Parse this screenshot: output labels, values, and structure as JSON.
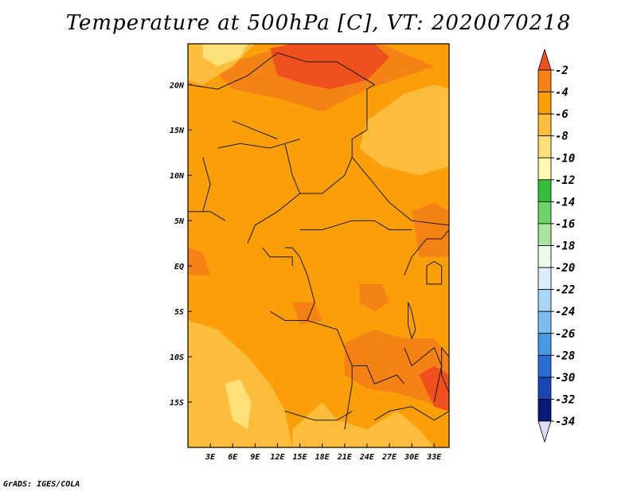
{
  "title": "Temperature at 500hPa [C], VT: 2020070218",
  "credit": "GrADS: IGES/COLA",
  "chart_data": {
    "type": "heatmap",
    "title": "Temperature at 500hPa [C], VT: 2020070218",
    "xlabel": "",
    "ylabel": "",
    "xlim": [
      0,
      35
    ],
    "ylim": [
      -20,
      24.5
    ],
    "x_ticks": [
      {
        "v": 3,
        "label": "3E"
      },
      {
        "v": 6,
        "label": "6E"
      },
      {
        "v": 9,
        "label": "9E"
      },
      {
        "v": 12,
        "label": "12E"
      },
      {
        "v": 15,
        "label": "15E"
      },
      {
        "v": 18,
        "label": "18E"
      },
      {
        "v": 21,
        "label": "21E"
      },
      {
        "v": 24,
        "label": "24E"
      },
      {
        "v": 27,
        "label": "27E"
      },
      {
        "v": 30,
        "label": "30E"
      },
      {
        "v": 33,
        "label": "33E"
      }
    ],
    "y_ticks": [
      {
        "v": 20,
        "label": "20N"
      },
      {
        "v": 15,
        "label": "15N"
      },
      {
        "v": 10,
        "label": "10N"
      },
      {
        "v": 5,
        "label": "5N"
      },
      {
        "v": 0,
        "label": "EQ"
      },
      {
        "v": -5,
        "label": "5S"
      },
      {
        "v": -10,
        "label": "10S"
      },
      {
        "v": -15,
        "label": "15S"
      }
    ],
    "colorbar": [
      {
        "label": "-2",
        "color": "#f0501e"
      },
      {
        "label": "-4",
        "color": "#f58214"
      },
      {
        "label": "-6",
        "color": "#fa9e0a"
      },
      {
        "label": "-8",
        "color": "#fcbd3c"
      },
      {
        "label": "-10",
        "color": "#fde178"
      },
      {
        "label": "-12",
        "color": "#fff8b4"
      },
      {
        "label": "-14",
        "color": "#34c03c"
      },
      {
        "label": "-16",
        "color": "#6ed46a"
      },
      {
        "label": "-18",
        "color": "#a8e6a0"
      },
      {
        "label": "-20",
        "color": "#ecfcec"
      },
      {
        "label": "-22",
        "color": "#dbeefa"
      },
      {
        "label": "-24",
        "color": "#aad6f6"
      },
      {
        "label": "-26",
        "color": "#7cbdf0"
      },
      {
        "label": "-28",
        "color": "#4a98e4"
      },
      {
        "label": "-30",
        "color": "#2a6cd8"
      },
      {
        "label": "-32",
        "color": "#1a46b4"
      },
      {
        "label": "-34",
        "color": "#0a1a78"
      }
    ],
    "colorbar_top_color": "#f0501e",
    "colorbar_bottom_color": "#dcdcf8",
    "regions": [
      {
        "level": -6,
        "color": "#fa9e0a",
        "points": [
          [
            0,
            24.5
          ],
          [
            35,
            24.5
          ],
          [
            35,
            -20
          ],
          [
            0,
            -20
          ]
        ]
      },
      {
        "level": -4,
        "color": "#f58214",
        "points": [
          [
            3,
            22
          ],
          [
            8,
            23
          ],
          [
            14,
            24.5
          ],
          [
            26,
            24.5
          ],
          [
            33,
            22
          ],
          [
            24,
            19.5
          ],
          [
            18,
            17
          ],
          [
            12,
            18.5
          ],
          [
            6,
            19.5
          ]
        ]
      },
      {
        "level": -2,
        "color": "#f0501e",
        "points": [
          [
            11,
            24
          ],
          [
            14,
            24.5
          ],
          [
            25,
            24.5
          ],
          [
            27,
            23
          ],
          [
            24,
            20.5
          ],
          [
            19,
            19.5
          ],
          [
            16,
            20
          ],
          [
            12,
            21
          ]
        ]
      },
      {
        "level": -8,
        "color": "#fcbd3c",
        "points": [
          [
            0,
            24.5
          ],
          [
            9,
            24.5
          ],
          [
            6,
            22
          ],
          [
            2,
            20
          ],
          [
            0,
            20.5
          ]
        ]
      },
      {
        "level": -10,
        "color": "#fde178",
        "points": [
          [
            2,
            24.5
          ],
          [
            8,
            24.5
          ],
          [
            7,
            23
          ],
          [
            4,
            22
          ],
          [
            2,
            23
          ]
        ]
      },
      {
        "level": -8,
        "color": "#fcbd3c",
        "points": [
          [
            24,
            16
          ],
          [
            29,
            19
          ],
          [
            33,
            20
          ],
          [
            35,
            19.5
          ],
          [
            35,
            11
          ],
          [
            31,
            10
          ],
          [
            26,
            11
          ],
          [
            23,
            13
          ]
        ]
      },
      {
        "level": -8,
        "color": "#fcbd3c",
        "points": [
          [
            0,
            -6
          ],
          [
            4,
            -7
          ],
          [
            8,
            -10
          ],
          [
            11,
            -13
          ],
          [
            13,
            -16
          ],
          [
            14,
            -20
          ],
          [
            0,
            -20
          ]
        ]
      },
      {
        "level": -10,
        "color": "#fde178",
        "points": [
          [
            5,
            -13
          ],
          [
            7,
            -12.5
          ],
          [
            8.5,
            -15
          ],
          [
            8,
            -18
          ],
          [
            6,
            -17
          ]
        ]
      },
      {
        "level": -8,
        "color": "#fcbd3c",
        "points": [
          [
            14,
            -18
          ],
          [
            18,
            -15
          ],
          [
            20,
            -17
          ],
          [
            24,
            -18
          ],
          [
            28,
            -16
          ],
          [
            31,
            -18
          ],
          [
            33,
            -20
          ],
          [
            14,
            -20
          ]
        ]
      },
      {
        "level": -4,
        "color": "#f58214",
        "points": [
          [
            21,
            -8.5
          ],
          [
            25,
            -7
          ],
          [
            29,
            -8
          ],
          [
            33,
            -8
          ],
          [
            35,
            -10
          ],
          [
            35,
            -16
          ],
          [
            32,
            -15
          ],
          [
            28,
            -14
          ],
          [
            24,
            -13.5
          ],
          [
            21,
            -12
          ]
        ]
      },
      {
        "level": -2,
        "color": "#f0501e",
        "points": [
          [
            31,
            -12
          ],
          [
            33,
            -11
          ],
          [
            35,
            -12
          ],
          [
            35,
            -16
          ],
          [
            33,
            -15.5
          ]
        ]
      },
      {
        "level": -4,
        "color": "#f58214",
        "points": [
          [
            23,
            -2
          ],
          [
            26,
            -2
          ],
          [
            27,
            -4
          ],
          [
            25,
            -5
          ],
          [
            23,
            -4
          ]
        ]
      },
      {
        "level": -4,
        "color": "#f58214",
        "points": [
          [
            14,
            -4
          ],
          [
            17,
            -4
          ],
          [
            18,
            -6
          ],
          [
            15,
            -6.5
          ]
        ]
      },
      {
        "level": -4,
        "color": "#f58214",
        "points": [
          [
            30,
            6
          ],
          [
            33,
            7
          ],
          [
            35,
            6
          ],
          [
            35,
            1
          ],
          [
            31,
            1
          ]
        ]
      },
      {
        "level": -4,
        "color": "#f58214",
        "points": [
          [
            0,
            2
          ],
          [
            2,
            1.5
          ],
          [
            3,
            -1
          ],
          [
            0,
            -1
          ]
        ]
      }
    ],
    "boundaries": [
      [
        [
          0,
          20
        ],
        [
          4,
          19.5
        ],
        [
          8,
          21
        ],
        [
          12,
          23.5
        ]
      ],
      [
        [
          12,
          23.5
        ],
        [
          16,
          22.5
        ],
        [
          20,
          22.5
        ],
        [
          25,
          20
        ],
        [
          24,
          19.5
        ]
      ],
      [
        [
          24,
          19.5
        ],
        [
          24,
          15
        ],
        [
          22,
          14
        ],
        [
          22,
          12
        ]
      ],
      [
        [
          22,
          12
        ],
        [
          25,
          9
        ],
        [
          27,
          7
        ],
        [
          30,
          5
        ],
        [
          35,
          4.5
        ]
      ],
      [
        [
          4,
          13
        ],
        [
          7,
          13.5
        ],
        [
          11,
          13
        ],
        [
          13,
          13.5
        ],
        [
          15,
          14
        ]
      ],
      [
        [
          13,
          13.5
        ],
        [
          14,
          10
        ],
        [
          15,
          8
        ],
        [
          18,
          8
        ],
        [
          21,
          10
        ],
        [
          22,
          12
        ]
      ],
      [
        [
          15,
          8
        ],
        [
          12,
          6
        ],
        [
          9,
          4.5
        ],
        [
          8,
          2.5
        ]
      ],
      [
        [
          0,
          6
        ],
        [
          3,
          6
        ],
        [
          5,
          5
        ]
      ],
      [
        [
          15,
          4
        ],
        [
          18,
          4
        ],
        [
          22,
          5
        ],
        [
          25,
          5
        ],
        [
          27,
          4
        ],
        [
          30,
          4
        ]
      ],
      [
        [
          13,
          2
        ],
        [
          14,
          2
        ],
        [
          15,
          1
        ],
        [
          16,
          -1
        ],
        [
          17,
          -4
        ],
        [
          16,
          -6
        ],
        [
          13,
          -6
        ]
      ],
      [
        [
          11,
          -5
        ],
        [
          13,
          -6
        ],
        [
          16,
          -6
        ],
        [
          20,
          -7
        ],
        [
          22,
          -11
        ],
        [
          24,
          -11
        ],
        [
          25,
          -13
        ],
        [
          28,
          -12
        ],
        [
          29,
          -13
        ]
      ],
      [
        [
          13,
          -16
        ],
        [
          17,
          -17
        ],
        [
          20,
          -17
        ],
        [
          22,
          -16
        ]
      ],
      [
        [
          22,
          -11
        ],
        [
          22,
          -13
        ],
        [
          21,
          -18
        ]
      ],
      [
        [
          25,
          -17
        ],
        [
          27,
          -16
        ],
        [
          30,
          -15.5
        ],
        [
          33,
          -17
        ],
        [
          35,
          -16
        ]
      ],
      [
        [
          29,
          -9
        ],
        [
          30,
          -11
        ],
        [
          33,
          -9
        ],
        [
          34,
          -11
        ],
        [
          33,
          -15
        ]
      ],
      [
        [
          29,
          -1
        ],
        [
          30,
          1
        ],
        [
          32,
          3
        ],
        [
          34,
          3
        ],
        [
          35,
          4
        ]
      ],
      [
        [
          10,
          2
        ],
        [
          11,
          1
        ],
        [
          14,
          1
        ],
        [
          14,
          0
        ]
      ],
      [
        [
          2,
          12
        ],
        [
          3,
          9
        ],
        [
          2,
          6
        ]
      ],
      [
        [
          6,
          16
        ],
        [
          9,
          15
        ],
        [
          12,
          14
        ]
      ]
    ],
    "lakes": [
      [
        [
          29.5,
          -4
        ],
        [
          30,
          -5
        ],
        [
          30.5,
          -7
        ],
        [
          30,
          -8
        ],
        [
          29.5,
          -6.5
        ]
      ],
      [
        [
          32,
          0
        ],
        [
          33,
          0.5
        ],
        [
          34,
          0
        ],
        [
          34,
          -2
        ],
        [
          32,
          -2
        ]
      ],
      [
        [
          34,
          -9
        ],
        [
          35,
          -10
        ],
        [
          35,
          -14
        ],
        [
          34,
          -12
        ]
      ]
    ]
  }
}
